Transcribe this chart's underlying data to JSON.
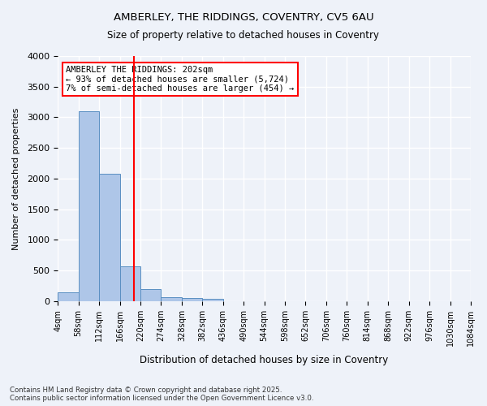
{
  "title_line1": "AMBERLEY, THE RIDDINGS, COVENTRY, CV5 6AU",
  "title_line2": "Size of property relative to detached houses in Coventry",
  "xlabel": "Distribution of detached houses by size in Coventry",
  "ylabel": "Number of detached properties",
  "bins": [
    "4sqm",
    "58sqm",
    "112sqm",
    "166sqm",
    "220sqm",
    "274sqm",
    "328sqm",
    "382sqm",
    "436sqm",
    "490sqm",
    "544sqm",
    "598sqm",
    "652sqm",
    "706sqm",
    "760sqm",
    "814sqm",
    "868sqm",
    "922sqm",
    "976sqm",
    "1030sqm",
    "1084sqm"
  ],
  "values": [
    140,
    3100,
    2080,
    575,
    200,
    70,
    55,
    40,
    5,
    0,
    0,
    0,
    0,
    0,
    0,
    0,
    0,
    0,
    0,
    0
  ],
  "bar_color": "#aec6e8",
  "bar_edge_color": "#5a8fc2",
  "vline_x": 3.7,
  "vline_color": "red",
  "annotation_text": "AMBERLEY THE RIDDINGS: 202sqm\n← 93% of detached houses are smaller (5,724)\n7% of semi-detached houses are larger (454) →",
  "annotation_box_color": "white",
  "annotation_box_edge_color": "red",
  "ylim": [
    0,
    4000
  ],
  "yticks": [
    0,
    500,
    1000,
    1500,
    2000,
    2500,
    3000,
    3500,
    4000
  ],
  "background_color": "#eef2f9",
  "grid_color": "white",
  "footnote": "Contains HM Land Registry data © Crown copyright and database right 2025.\nContains public sector information licensed under the Open Government Licence v3.0."
}
